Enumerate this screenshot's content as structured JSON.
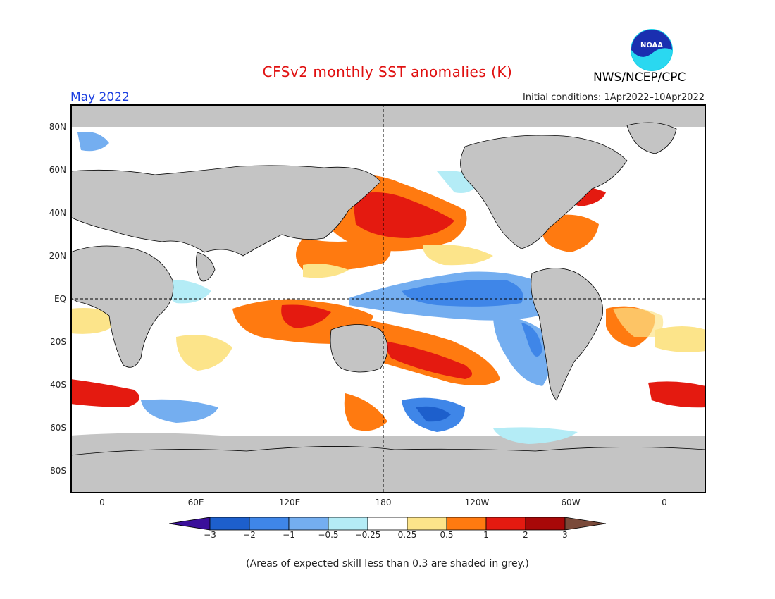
{
  "header": {
    "title": "CFSv2 monthly SST anomalies (K)",
    "agency": "NWS/NCEP/CPC",
    "month": "May 2022",
    "initial_conditions": "Initial conditions: 1Apr2022–10Apr2022",
    "logo_text": "NOAA"
  },
  "map": {
    "y_ticks": [
      "80N",
      "60N",
      "40N",
      "20N",
      "EQ",
      "20S",
      "40S",
      "60S",
      "80S"
    ],
    "x_ticks": [
      "0",
      "60E",
      "120E",
      "180",
      "120W",
      "60W",
      "0"
    ],
    "unit": "K",
    "colors": {
      "land": "#c4c4c4",
      "low_skill": "#c4c4c4",
      "neutral": "#ffffff"
    }
  },
  "colorbar": {
    "labels": [
      "−3",
      "−2",
      "−1",
      "−0.5",
      "−0.25",
      "0.25",
      "0.5",
      "1",
      "2",
      "3"
    ],
    "colors": [
      "#3a0f9a",
      "#1d5fcc",
      "#3f86e8",
      "#74aef0",
      "#b4ecf6",
      "#ffffff",
      "#fce48a",
      "#ff7a10",
      "#e41a10",
      "#a80808",
      "#7a4a3a"
    ]
  },
  "footer": {
    "note": "(Areas of expected skill less than 0.3 are shaded in grey.)"
  }
}
